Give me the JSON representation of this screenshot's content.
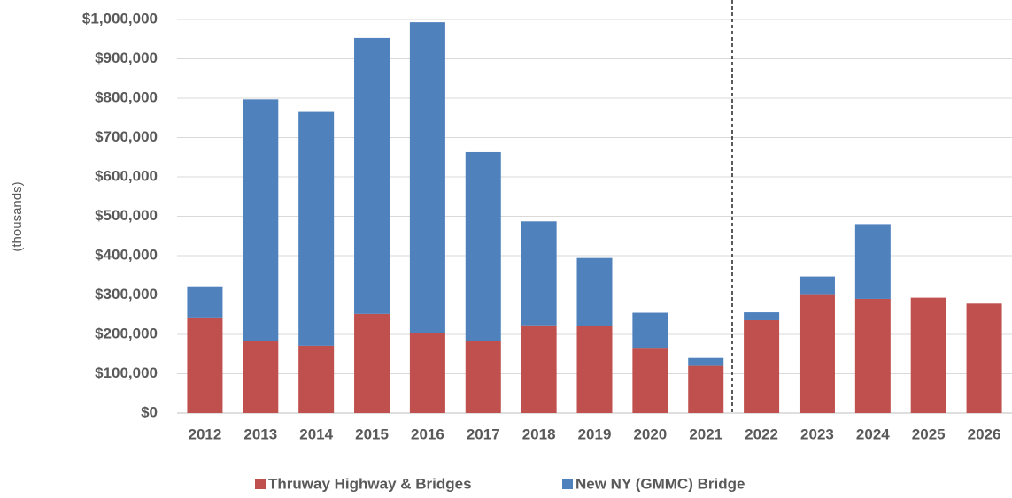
{
  "chart_data": {
    "type": "bar",
    "stacked": true,
    "y_label": "(thousands)",
    "categories": [
      "2012",
      "2013",
      "2014",
      "2015",
      "2016",
      "2017",
      "2018",
      "2019",
      "2020",
      "2021",
      "2022",
      "2023",
      "2024",
      "2025",
      "2026"
    ],
    "series": [
      {
        "name": "Thruway Highway & Bridges",
        "color": "#c0504d",
        "values": [
          243000,
          184000,
          171000,
          252000,
          203000,
          184000,
          223000,
          222000,
          166000,
          120000,
          236000,
          302000,
          290000,
          293000,
          278000
        ]
      },
      {
        "name": "New NY (GMMC) Bridge",
        "color": "#4f81bd",
        "values": [
          79000,
          613000,
          594000,
          701000,
          790000,
          479000,
          264000,
          172000,
          89000,
          20000,
          20000,
          45000,
          190000,
          0,
          0
        ]
      }
    ],
    "ylim": [
      0,
      1000000
    ],
    "yticks": [
      {
        "value": 0,
        "label": "$0"
      },
      {
        "value": 100000,
        "label": "$100,000"
      },
      {
        "value": 200000,
        "label": "$200,000"
      },
      {
        "value": 300000,
        "label": "$300,000"
      },
      {
        "value": 400000,
        "label": "$400,000"
      },
      {
        "value": 500000,
        "label": "$500,000"
      },
      {
        "value": 600000,
        "label": "$600,000"
      },
      {
        "value": 700000,
        "label": "$700,000"
      },
      {
        "value": 800000,
        "label": "$800,000"
      },
      {
        "value": 900000,
        "label": "$900,000"
      },
      {
        "value": 1000000,
        "label": "$1,000,000"
      }
    ],
    "grid": true,
    "legend": "bottom"
  }
}
